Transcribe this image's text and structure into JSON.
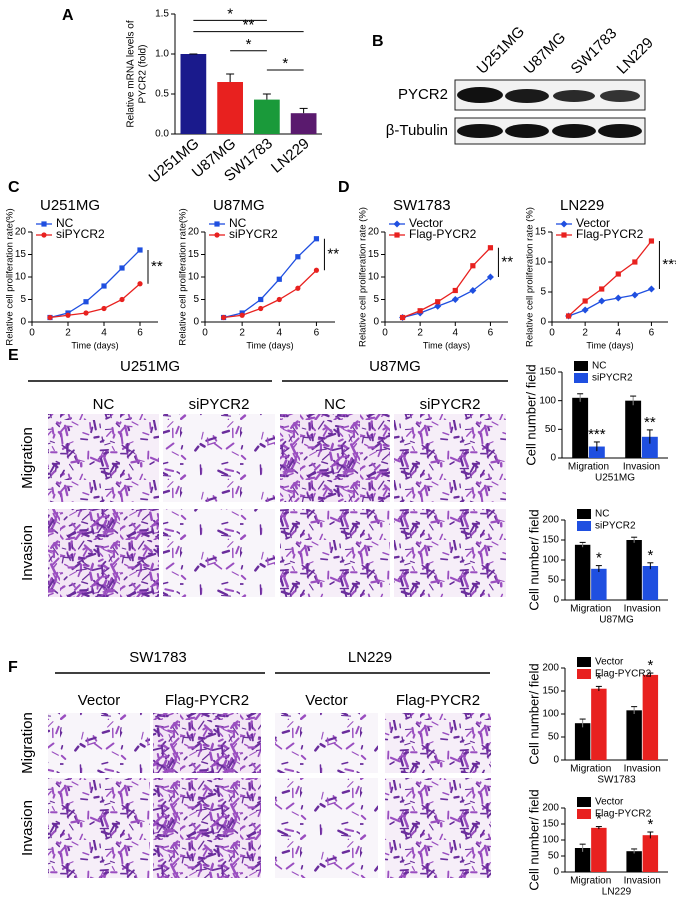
{
  "chart_data": [
    {
      "type": "bar",
      "categories": [
        "U251MG",
        "U87MG",
        "SW1783",
        "LN229"
      ],
      "values": [
        1.0,
        0.65,
        0.43,
        0.26
      ],
      "errors": [
        0,
        0.1,
        0.07,
        0.06
      ],
      "colors": [
        "#1a1a8c",
        "#e8211f",
        "#1a9a3a",
        "#5a1a6e"
      ],
      "ylabel": [
        "Relative mRNA levels of",
        "PYCR2 (fold)"
      ],
      "ylim": [
        0,
        1.5
      ],
      "yticks": [
        {
          "value": 0,
          "label": "0.0"
        },
        {
          "value": 0.5,
          "label": "0.5"
        },
        {
          "value": 1,
          "label": "1.0"
        },
        {
          "value": 1.5,
          "label": "1.5"
        }
      ],
      "annotations": [
        "*",
        "**",
        "*",
        "*"
      ]
    },
    {
      "type": "line",
      "title": "U251MG",
      "ylabel": "Relative cell proliferation rate(%)",
      "xlabel": "Time (days)",
      "x": [
        1,
        2,
        3,
        4,
        5,
        6
      ],
      "xlim": [
        0,
        7
      ],
      "xticks": [
        0,
        2,
        4,
        6
      ],
      "ylim": [
        0,
        20
      ],
      "yticks": [
        0,
        5,
        10,
        15,
        20
      ],
      "series": [
        {
          "name": "NC",
          "color": "#1f4fe0",
          "marker": "square",
          "values": [
            1,
            2,
            4.5,
            8,
            12,
            16
          ]
        },
        {
          "name": "siPYCR2",
          "color": "#e8211f",
          "marker": "circle",
          "values": [
            1,
            1.5,
            2,
            3,
            5,
            8.5
          ]
        }
      ],
      "annotations": [
        "**"
      ]
    },
    {
      "type": "line",
      "title": "U87MG",
      "ylabel": "Relative cell proliferation rate(%)",
      "xlabel": "Time (days)",
      "x": [
        1,
        2,
        3,
        4,
        5,
        6
      ],
      "xlim": [
        0,
        7
      ],
      "xticks": [
        0,
        2,
        4,
        6
      ],
      "ylim": [
        0,
        20
      ],
      "yticks": [
        0,
        5,
        10,
        15,
        20
      ],
      "series": [
        {
          "name": "NC",
          "color": "#1f4fe0",
          "marker": "square",
          "values": [
            1,
            2,
            5,
            9.5,
            14.5,
            18.5
          ]
        },
        {
          "name": "siPYCR2",
          "color": "#e8211f",
          "marker": "circle",
          "values": [
            1,
            1.5,
            3,
            5,
            7.5,
            11.5
          ]
        }
      ],
      "annotations": [
        "**"
      ]
    },
    {
      "type": "line",
      "title": "SW1783",
      "ylabel": "Relative cell proliferation rate (%)",
      "xlabel": "Time (days)",
      "x": [
        1,
        2,
        3,
        4,
        5,
        6
      ],
      "xlim": [
        0,
        7
      ],
      "xticks": [
        0,
        2,
        4,
        6
      ],
      "ylim": [
        0,
        20
      ],
      "yticks": [
        0,
        5,
        10,
        15,
        20
      ],
      "series": [
        {
          "name": "Vector",
          "color": "#1f4fe0",
          "marker": "diamond",
          "values": [
            1,
            2,
            3.5,
            5,
            7,
            10
          ]
        },
        {
          "name": "Flag-PYCR2",
          "color": "#e8211f",
          "marker": "square",
          "values": [
            1,
            2.5,
            4.5,
            7,
            12.5,
            16.5
          ]
        }
      ],
      "annotations": [
        "**"
      ]
    },
    {
      "type": "line",
      "title": "LN229",
      "ylabel": "Relative cell proliferation rate (%)",
      "xlabel": "Time (days)",
      "x": [
        1,
        2,
        3,
        4,
        5,
        6
      ],
      "xlim": [
        0,
        7
      ],
      "xticks": [
        0,
        2,
        4,
        6
      ],
      "ylim": [
        0,
        15
      ],
      "yticks": [
        0,
        5,
        10,
        15
      ],
      "series": [
        {
          "name": "Vector",
          "color": "#1f4fe0",
          "marker": "diamond",
          "values": [
            1,
            2,
            3.5,
            4,
            4.5,
            5.5
          ]
        },
        {
          "name": "Flag-PYCR2",
          "color": "#e8211f",
          "marker": "square",
          "values": [
            1,
            3.5,
            5.5,
            8,
            10,
            13.5
          ]
        }
      ],
      "annotations": [
        "***"
      ]
    },
    {
      "type": "grouped_bar",
      "categories": [
        "Migration",
        "Invasion"
      ],
      "xlabel": "U251MG",
      "ylabel": "Cell number/ field",
      "ylim": [
        0,
        150
      ],
      "yticks": [
        0,
        50,
        100,
        150
      ],
      "series": [
        {
          "name": "NC",
          "color": "#000000",
          "values": [
            105,
            100
          ],
          "errors": [
            7,
            8
          ]
        },
        {
          "name": "siPYCR2",
          "color": "#1f4fe0",
          "values": [
            20,
            37
          ],
          "errors": [
            8,
            12
          ]
        }
      ],
      "annotations": [
        "***",
        "**"
      ]
    },
    {
      "type": "grouped_bar",
      "categories": [
        "Migration",
        "Invasion"
      ],
      "xlabel": "U87MG",
      "ylabel": "Cell number/ field",
      "ylim": [
        0,
        200
      ],
      "yticks": [
        0,
        50,
        100,
        150,
        200
      ],
      "series": [
        {
          "name": "NC",
          "color": "#000000",
          "values": [
            138,
            150
          ],
          "errors": [
            6,
            7
          ]
        },
        {
          "name": "siPYCR2",
          "color": "#1f4fe0",
          "values": [
            78,
            85
          ],
          "errors": [
            8,
            8
          ]
        }
      ],
      "annotations": [
        "*",
        "*"
      ]
    },
    {
      "type": "grouped_bar",
      "categories": [
        "Migration",
        "Invasion"
      ],
      "xlabel": "SW1783",
      "ylabel": "Cell number/ field",
      "ylim": [
        0,
        200
      ],
      "yticks": [
        0,
        50,
        100,
        150,
        200
      ],
      "series": [
        {
          "name": "Vector",
          "color": "#000000",
          "values": [
            80,
            108
          ],
          "errors": [
            9,
            8
          ]
        },
        {
          "name": "Flag-PYCR2",
          "color": "#e8211f",
          "values": [
            155,
            185
          ],
          "errors": [
            5,
            4
          ]
        }
      ],
      "annotations": [
        "*",
        "*"
      ]
    },
    {
      "type": "grouped_bar",
      "categories": [
        "Migration",
        "Invasion"
      ],
      "xlabel": "LN229",
      "ylabel": "Cell number/ field",
      "ylim": [
        0,
        200
      ],
      "yticks": [
        0,
        50,
        100,
        150,
        200
      ],
      "series": [
        {
          "name": "Vector",
          "color": "#000000",
          "values": [
            75,
            65
          ],
          "errors": [
            12,
            7
          ]
        },
        {
          "name": "Flag-PYCR2",
          "color": "#e8211f",
          "values": [
            138,
            115
          ],
          "errors": [
            4,
            10
          ]
        }
      ],
      "annotations": [
        "*",
        "*"
      ]
    }
  ],
  "panels": [
    "A",
    "B",
    "C",
    "D",
    "E",
    "F"
  ],
  "blot": {
    "cell_lines": [
      "U251MG",
      "U87MG",
      "SW1783",
      "LN229"
    ],
    "bands": [
      "PYCR2",
      "β-Tubulin"
    ]
  },
  "panel_e": {
    "cell_lines": [
      "U251MG",
      "U87MG"
    ],
    "conditions": [
      "NC",
      "siPYCR2",
      "NC",
      "siPYCR2"
    ],
    "assays": [
      "Migration",
      "Invasion"
    ]
  },
  "panel_f": {
    "cell_lines": [
      "SW1783",
      "LN229"
    ],
    "conditions": [
      "Vector",
      "Flag-PYCR2",
      "Vector",
      "Flag-PYCR2"
    ],
    "assays": [
      "Migration",
      "Invasion"
    ]
  }
}
